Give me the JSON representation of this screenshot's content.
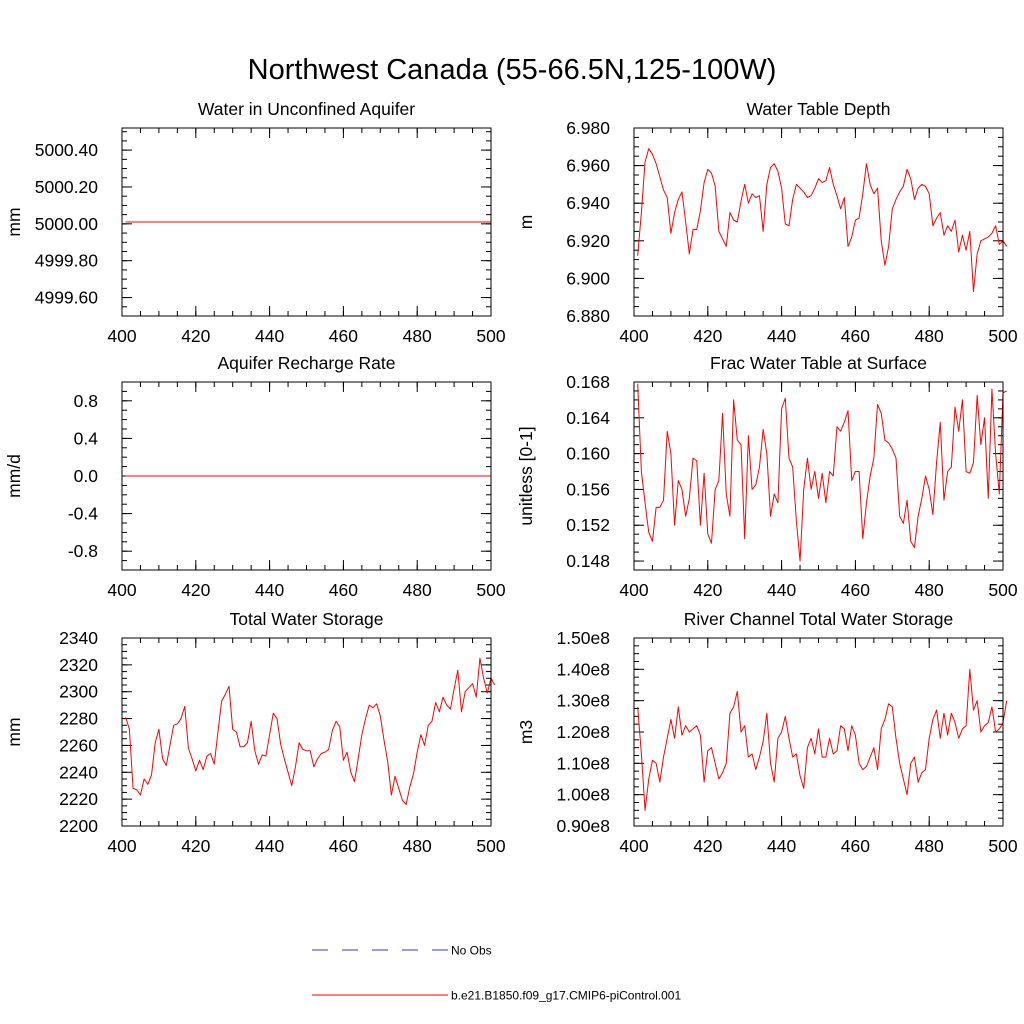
{
  "title": "Northwest Canada (55-66.5N,125-100W)",
  "legend": [
    {
      "label": "No Obs",
      "color": "#3a3ac8",
      "dash": true
    },
    {
      "label": "b.e21.B1850.f09_g17.CMIP6-piControl.001",
      "color": "#ff0000",
      "dash": false
    }
  ],
  "chart_data": [
    {
      "type": "line",
      "title": "Water in Unconfined Aquifer",
      "ylabel": "mm",
      "xlim": [
        400,
        500
      ],
      "ylim": [
        4999.5,
        5000.52
      ],
      "xticks": [
        400,
        420,
        440,
        460,
        480,
        500
      ],
      "xtick_labels": [
        "400",
        "420",
        "440",
        "460",
        "480",
        "500"
      ],
      "yticks": [
        4999.6,
        4999.8,
        5000.0,
        5000.2,
        5000.4
      ],
      "ytick_labels": [
        "4999.60",
        "4999.80",
        "5000.00",
        "5000.20",
        "5000.40"
      ],
      "series": [
        {
          "name": "b.e21.B1850.f09_g17.CMIP6-piControl.001",
          "color": "#ff0000",
          "x_start": 401,
          "x_step": 1,
          "values": [
            5000.01,
            5000.01,
            5000.01,
            5000.01,
            5000.01,
            5000.01,
            5000.01,
            5000.01,
            5000.01,
            5000.01,
            5000.01,
            5000.01,
            5000.01,
            5000.01,
            5000.01,
            5000.01,
            5000.01,
            5000.01,
            5000.01,
            5000.01,
            5000.01,
            5000.01,
            5000.01,
            5000.01,
            5000.01,
            5000.01,
            5000.01,
            5000.01,
            5000.01,
            5000.01,
            5000.01,
            5000.01,
            5000.01,
            5000.01,
            5000.01,
            5000.01,
            5000.01,
            5000.01,
            5000.01,
            5000.01,
            5000.01,
            5000.01,
            5000.01,
            5000.01,
            5000.01,
            5000.01,
            5000.01,
            5000.01,
            5000.01,
            5000.01,
            5000.01,
            5000.01,
            5000.01,
            5000.01,
            5000.01,
            5000.01,
            5000.01,
            5000.01,
            5000.01,
            5000.01,
            5000.01,
            5000.01,
            5000.01,
            5000.01,
            5000.01,
            5000.01,
            5000.01,
            5000.01,
            5000.01,
            5000.01,
            5000.01,
            5000.01,
            5000.01,
            5000.01,
            5000.01,
            5000.01,
            5000.01,
            5000.01,
            5000.01,
            5000.01,
            5000.01,
            5000.01,
            5000.01,
            5000.01,
            5000.01,
            5000.01,
            5000.01,
            5000.01,
            5000.01,
            5000.01,
            5000.01,
            5000.01,
            5000.01,
            5000.01,
            5000.01,
            5000.01,
            5000.01,
            5000.01,
            5000.01,
            5000.01
          ]
        }
      ]
    },
    {
      "type": "line",
      "title": "Water Table Depth",
      "ylabel": "m",
      "xlim": [
        400,
        500
      ],
      "ylim": [
        6.88,
        6.98
      ],
      "xticks": [
        400,
        420,
        440,
        460,
        480,
        500
      ],
      "xtick_labels": [
        "400",
        "420",
        "440",
        "460",
        "480",
        "500"
      ],
      "yticks": [
        6.88,
        6.9,
        6.92,
        6.94,
        6.96,
        6.98
      ],
      "ytick_labels": [
        "6.880",
        "6.900",
        "6.920",
        "6.940",
        "6.960",
        "6.980"
      ],
      "series": [
        {
          "name": "b.e21.B1850.f09_g17.CMIP6-piControl.001",
          "color": "#ff0000",
          "x_start": 401,
          "x_step": 1,
          "values": [
            6.912,
            6.935,
            6.962,
            6.969,
            6.966,
            6.961,
            6.954,
            6.947,
            6.943,
            6.924,
            6.935,
            6.942,
            6.946,
            6.93,
            6.913,
            6.926,
            6.926,
            6.936,
            6.951,
            6.958,
            6.956,
            6.949,
            6.925,
            6.921,
            6.917,
            6.935,
            6.931,
            6.93,
            6.941,
            6.95,
            6.94,
            6.945,
            6.943,
            6.944,
            6.925,
            6.95,
            6.959,
            6.961,
            6.957,
            6.948,
            6.929,
            6.928,
            6.942,
            6.95,
            6.948,
            6.946,
            6.943,
            6.944,
            6.948,
            6.953,
            6.951,
            6.952,
            6.959,
            6.95,
            6.944,
            6.937,
            6.943,
            6.917,
            6.922,
            6.931,
            6.932,
            6.945,
            6.961,
            6.95,
            6.945,
            6.948,
            6.92,
            6.907,
            6.917,
            6.937,
            6.942,
            6.946,
            6.949,
            6.958,
            6.953,
            6.942,
            6.948,
            6.95,
            6.949,
            6.945,
            6.928,
            6.932,
            6.935,
            6.923,
            6.928,
            6.925,
            6.931,
            6.914,
            6.923,
            6.915,
            6.925,
            6.893,
            6.913,
            6.92,
            6.921,
            6.922,
            6.924,
            6.928,
            6.918,
            6.92,
            6.917
          ]
        }
      ]
    },
    {
      "type": "line",
      "title": "Aquifer Recharge Rate",
      "ylabel": "mm/d",
      "xlim": [
        400,
        500
      ],
      "ylim": [
        -1.0,
        1.0
      ],
      "xticks": [
        400,
        420,
        440,
        460,
        480,
        500
      ],
      "xtick_labels": [
        "400",
        "420",
        "440",
        "460",
        "480",
        "500"
      ],
      "yticks": [
        -0.8,
        -0.4,
        0.0,
        0.4,
        0.8
      ],
      "ytick_labels": [
        "-0.8",
        "-0.4",
        "0.0",
        "0.4",
        "0.8"
      ],
      "series": [
        {
          "name": "b.e21.B1850.f09_g17.CMIP6-piControl.001",
          "color": "#ff0000",
          "x_start": 401,
          "x_step": 1,
          "values": [
            0.0,
            0.0,
            0.0,
            0.0,
            0.0,
            0.0,
            0.0,
            0.0,
            0.0,
            0.0,
            0.0,
            0.0,
            0.0,
            0.0,
            0.0,
            0.0,
            0.0,
            0.0,
            0.0,
            0.0,
            0.0,
            0.0,
            0.0,
            0.0,
            0.0,
            0.0,
            0.0,
            0.0,
            0.0,
            0.0,
            0.0,
            0.0,
            0.0,
            0.0,
            0.0,
            0.0,
            0.0,
            0.0,
            0.0,
            0.0,
            0.0,
            0.0,
            0.0,
            0.0,
            0.0,
            0.0,
            0.0,
            0.0,
            0.0,
            0.0,
            0.0,
            0.0,
            0.0,
            0.0,
            0.0,
            0.0,
            0.0,
            0.0,
            0.0,
            0.0,
            0.0,
            0.0,
            0.0,
            0.0,
            0.0,
            0.0,
            0.0,
            0.0,
            0.0,
            0.0,
            0.0,
            0.0,
            0.0,
            0.0,
            0.0,
            0.0,
            0.0,
            0.0,
            0.0,
            0.0,
            0.0,
            0.0,
            0.0,
            0.0,
            0.0,
            0.0,
            0.0,
            0.0,
            0.0,
            0.0,
            0.0,
            0.0,
            0.0,
            0.0,
            0.0,
            0.0,
            0.0,
            0.0,
            0.0,
            0.0
          ]
        }
      ]
    },
    {
      "type": "line",
      "title": "Frac Water Table at Surface",
      "ylabel": "unitless [0-1]",
      "xlim": [
        400,
        500
      ],
      "ylim": [
        0.147,
        0.168
      ],
      "xticks": [
        400,
        420,
        440,
        460,
        480,
        500
      ],
      "xtick_labels": [
        "400",
        "420",
        "440",
        "460",
        "480",
        "500"
      ],
      "yticks": [
        0.148,
        0.152,
        0.156,
        0.16,
        0.164,
        0.168
      ],
      "ytick_labels": [
        "0.148",
        "0.152",
        "0.156",
        "0.160",
        "0.164",
        "0.168"
      ],
      "series": [
        {
          "name": "b.e21.B1850.f09_g17.CMIP6-piControl.001",
          "color": "#ff0000",
          "x_start": 401,
          "x_step": 1,
          "values": [
            0.1678,
            0.158,
            0.1545,
            0.1512,
            0.1502,
            0.154,
            0.154,
            0.1548,
            0.1625,
            0.16,
            0.152,
            0.157,
            0.156,
            0.153,
            0.155,
            0.1595,
            0.1592,
            0.152,
            0.1578,
            0.151,
            0.15,
            0.156,
            0.157,
            0.1645,
            0.1555,
            0.153,
            0.166,
            0.1615,
            0.161,
            0.1505,
            0.162,
            0.156,
            0.1565,
            0.1585,
            0.1627,
            0.16,
            0.153,
            0.1555,
            0.1545,
            0.165,
            0.1662,
            0.1595,
            0.1585,
            0.1525,
            0.148,
            0.156,
            0.1595,
            0.156,
            0.158,
            0.155,
            0.1578,
            0.1545,
            0.158,
            0.1575,
            0.163,
            0.1625,
            0.1635,
            0.1648,
            0.157,
            0.158,
            0.158,
            0.1505,
            0.1545,
            0.1575,
            0.1595,
            0.1655,
            0.1645,
            0.1615,
            0.1612,
            0.1605,
            0.1595,
            0.153,
            0.1522,
            0.1548,
            0.1502,
            0.1495,
            0.153,
            0.155,
            0.1575,
            0.156,
            0.1532,
            0.159,
            0.1635,
            0.1548,
            0.158,
            0.1585,
            0.1652,
            0.1625,
            0.166,
            0.158,
            0.1578,
            0.159,
            0.1665,
            0.161,
            0.164,
            0.155,
            0.1672,
            0.16,
            0.1555,
            0.1668,
            0.167
          ]
        }
      ]
    },
    {
      "type": "line",
      "title": "Total Water Storage",
      "ylabel": "mm",
      "xlim": [
        400,
        500
      ],
      "ylim": [
        2200,
        2340
      ],
      "xticks": [
        400,
        420,
        440,
        460,
        480,
        500
      ],
      "xtick_labels": [
        "400",
        "420",
        "440",
        "460",
        "480",
        "500"
      ],
      "yticks": [
        2200,
        2220,
        2240,
        2260,
        2280,
        2300,
        2320,
        2340
      ],
      "ytick_labels": [
        "2200",
        "2220",
        "2240",
        "2260",
        "2280",
        "2300",
        "2320",
        "2340"
      ],
      "series": [
        {
          "name": "b.e21.B1850.f09_g17.CMIP6-piControl.001",
          "color": "#ff0000",
          "x_start": 401,
          "x_step": 1,
          "values": [
            2281,
            2272,
            2228,
            2227,
            2223,
            2235,
            2231,
            2238,
            2262,
            2272,
            2250,
            2245,
            2260,
            2275,
            2276,
            2280,
            2289,
            2258,
            2250,
            2241,
            2249,
            2242,
            2252,
            2254,
            2246,
            2270,
            2293,
            2298,
            2304,
            2272,
            2270,
            2259,
            2259,
            2262,
            2278,
            2256,
            2246,
            2253,
            2252,
            2268,
            2284,
            2280,
            2261,
            2250,
            2240,
            2230,
            2244,
            2262,
            2257,
            2256,
            2256,
            2244,
            2250,
            2254,
            2255,
            2257,
            2271,
            2278,
            2274,
            2249,
            2255,
            2240,
            2233,
            2250,
            2268,
            2280,
            2290,
            2288,
            2291,
            2282,
            2264,
            2248,
            2223,
            2237,
            2228,
            2219,
            2216,
            2229,
            2239,
            2255,
            2268,
            2260,
            2275,
            2278,
            2292,
            2285,
            2296,
            2290,
            2287,
            2302,
            2316,
            2285,
            2300,
            2303,
            2306,
            2296,
            2325,
            2310,
            2299,
            2310,
            2305
          ]
        }
      ]
    },
    {
      "type": "line",
      "title": "River Channel Total Water Storage",
      "ylabel": "m3",
      "xlim": [
        400,
        500
      ],
      "ylim": [
        0.9,
        1.5
      ],
      "y_units_note": "values in units of 1e8 m3",
      "xticks": [
        400,
        420,
        440,
        460,
        480,
        500
      ],
      "xtick_labels": [
        "400",
        "420",
        "440",
        "460",
        "480",
        "500"
      ],
      "yticks": [
        0.9,
        1.0,
        1.1,
        1.2,
        1.3,
        1.4,
        1.5
      ],
      "ytick_labels": [
        "0.90e8",
        "1.00e8",
        "1.10e8",
        "1.20e8",
        "1.30e8",
        "1.40e8",
        "1.50e8"
      ],
      "series": [
        {
          "name": "b.e21.B1850.f09_g17.CMIP6-piControl.001",
          "color": "#ff0000",
          "x_start": 401,
          "x_step": 1,
          "values": [
            1.28,
            1.13,
            0.95,
            1.05,
            1.11,
            1.1,
            1.04,
            1.12,
            1.18,
            1.24,
            1.18,
            1.28,
            1.19,
            1.22,
            1.2,
            1.21,
            1.22,
            1.19,
            1.04,
            1.14,
            1.15,
            1.1,
            1.05,
            1.07,
            1.1,
            1.26,
            1.28,
            1.33,
            1.2,
            1.22,
            1.12,
            1.13,
            1.08,
            1.12,
            1.17,
            1.26,
            1.1,
            1.04,
            1.18,
            1.2,
            1.25,
            1.18,
            1.12,
            1.13,
            1.06,
            1.02,
            1.15,
            1.18,
            1.13,
            1.21,
            1.12,
            1.12,
            1.18,
            1.13,
            1.14,
            1.22,
            1.21,
            1.14,
            1.22,
            1.19,
            1.1,
            1.08,
            1.09,
            1.12,
            1.15,
            1.08,
            1.21,
            1.24,
            1.29,
            1.28,
            1.18,
            1.1,
            1.05,
            1.0,
            1.1,
            1.12,
            1.04,
            1.07,
            1.08,
            1.18,
            1.24,
            1.27,
            1.18,
            1.26,
            1.19,
            1.26,
            1.23,
            1.18,
            1.21,
            1.22,
            1.4,
            1.27,
            1.3,
            1.2,
            1.22,
            1.23,
            1.28,
            1.2,
            1.21,
            1.23,
            1.3
          ]
        }
      ]
    }
  ]
}
